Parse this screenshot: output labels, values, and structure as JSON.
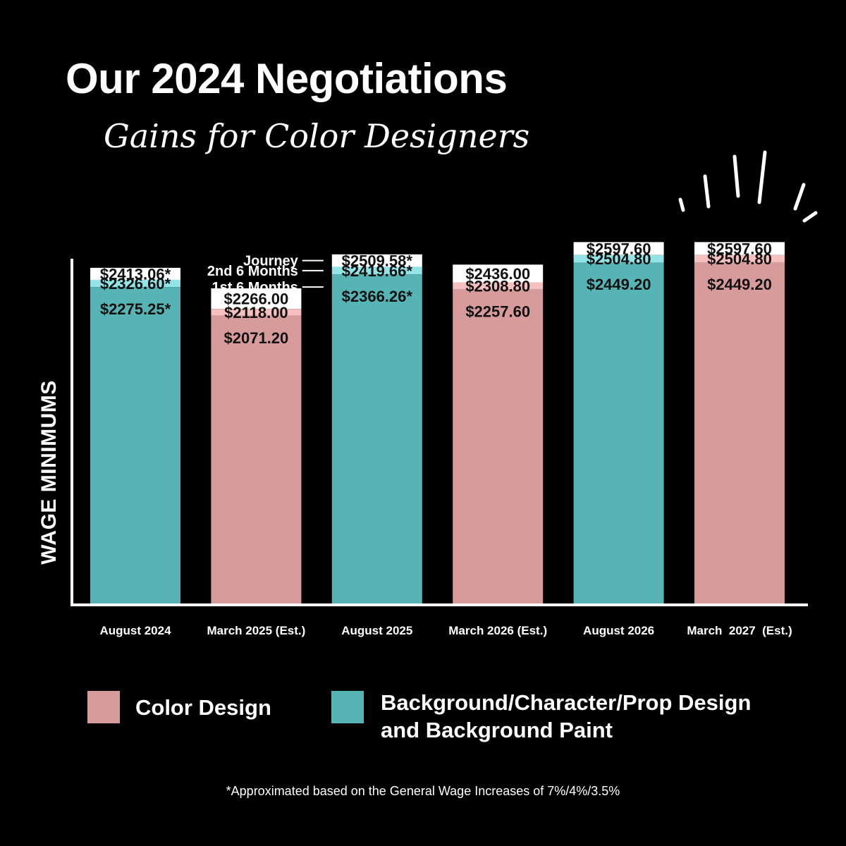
{
  "title": "Our 2024 Negotiations",
  "subtitle": "Gains for Color Designers",
  "footnote": "*Approximated based on the General Wage Increases of 7%/4%/3.5%",
  "colors": {
    "color_design": "#d89b9c",
    "color_design_light": "#f6c0c0",
    "bg_design": "#56b4b4",
    "bg_design_light": "#92e4e6",
    "background": "#000000",
    "text_dark": "#111111",
    "white": "#ffffff"
  },
  "legend": [
    {
      "label": "Color Design",
      "color": "#d89b9c"
    },
    {
      "label_lines": [
        "Background/Character/Prop Design",
        "and Background Paint"
      ],
      "color": "#56b4b4"
    }
  ],
  "tier_labels": [
    "Journey",
    "2nd 6 Months",
    "1st 6 Months"
  ],
  "decoration": "burst-lines",
  "chart_data": {
    "type": "bar",
    "ylabel": "WAGE MINIMUMS",
    "xlabel": "",
    "categories": [
      "August 2024",
      "March 2025 (Est.)",
      "August 2025",
      "March 2026 (Est.)",
      "August 2026",
      "March  2027  (Est.)"
    ],
    "bar_series": [
      "Background/Character/Prop Design and Background Paint",
      "Color Design",
      "Background/Character/Prop Design and Background Paint",
      "Color Design",
      "Background/Character/Prop Design and Background Paint",
      "Color Design"
    ],
    "series": [
      {
        "name": "1st 6 Months",
        "values": [
          2275.25,
          2071.2,
          2366.26,
          2257.6,
          2449.2,
          2449.2
        ]
      },
      {
        "name": "2nd 6 Months",
        "values": [
          2326.6,
          2118.0,
          2419.66,
          2308.8,
          2504.8,
          2504.8
        ]
      },
      {
        "name": "Journey",
        "values": [
          2413.06,
          2266.0,
          2509.58,
          2436.0,
          2597.6,
          2597.6
        ]
      }
    ],
    "labels": [
      [
        "$2275.25*",
        "$2326.60*",
        "$2413.06*"
      ],
      [
        "$2071.20",
        "$2118.00",
        "$2266.00"
      ],
      [
        "$2366.26*",
        "$2419.66*",
        "$2509.58*"
      ],
      [
        "$2257.60",
        "$2308.80",
        "$2436.00"
      ],
      [
        "$2449.20",
        "$2504.80",
        "$2597.60"
      ],
      [
        "$2449.20",
        "$2504.80",
        "$2597.60"
      ]
    ],
    "ylim": [
      0,
      2640
    ],
    "grid": false,
    "legend_position": "bottom"
  }
}
